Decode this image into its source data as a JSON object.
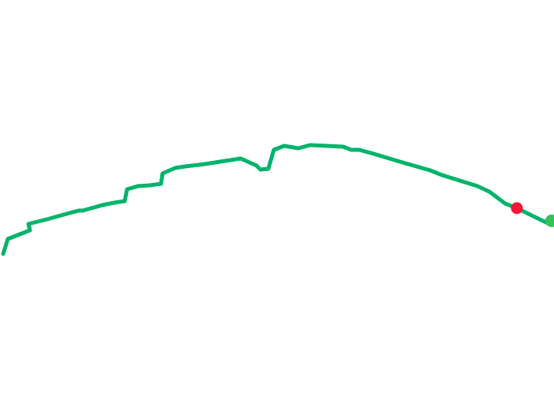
{
  "map": {
    "background_color": "#ffffff",
    "route": {
      "color": "#00b36b"
    },
    "markers": [
      {
        "name": "current-position",
        "color": "#f5163a"
      },
      {
        "name": "end-point",
        "color": "#34c157"
      }
    ]
  }
}
